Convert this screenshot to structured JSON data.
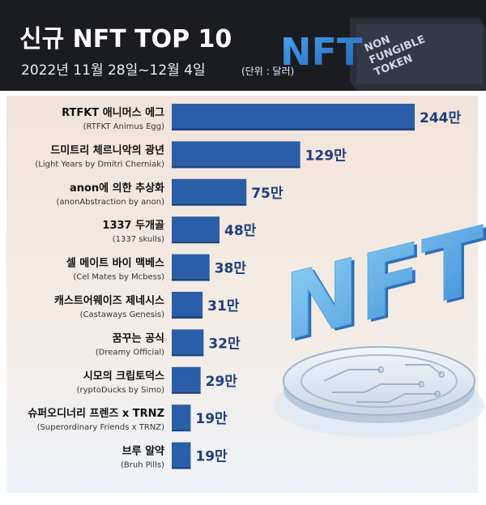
{
  "header": {
    "title": "신규 NFT TOP 10",
    "subtitle": "2022년 11월 28일~12월 4일",
    "unit": "(단위 : 달러)",
    "logo_main": "NFT",
    "logo_lines": [
      "NON",
      "FUNGIBLE",
      "TOKEN"
    ]
  },
  "illustration": {
    "text": "NFT"
  },
  "colors": {
    "bar": "#2b5ea8",
    "bar_dark": "#1d4686",
    "header_bg": "#1b1c22",
    "panel_bg": "#f3e9e1",
    "value_text": "#1f3f7a"
  },
  "chart_data": {
    "type": "bar",
    "orientation": "horizontal",
    "categories": [
      "RTFKT 애니머스 에그",
      "드미트리 체르니악의 광년",
      "anon에 의한 추상화",
      "1337 두개골",
      "셀 메이트 바이 맥베스",
      "캐스트어웨이즈 제네시스",
      "꿈꾸는 공식",
      "시모의 크립토덕스",
      "슈퍼오디너리 프렌즈 x TRNZ",
      "브루 알약"
    ],
    "subcategories": [
      "(RTFKT Animus Egg)",
      "(Light Years by Dmitri Cherniak)",
      "(anonAbstraction by anon)",
      "(1337 skulls)",
      "(Cel Mates by Mcbess)",
      "(Castaways Genesis)",
      "(Dreamy Official)",
      "(ryptoDucks by Simo)",
      "(Superordinary Friends x TRNZ)",
      "(Bruh Pills)"
    ],
    "values": [
      2440000,
      1290000,
      750000,
      480000,
      380000,
      310000,
      320000,
      290000,
      190000,
      190000
    ],
    "value_labels": [
      "244만",
      "129만",
      "75만",
      "48만",
      "38만",
      "31만",
      "32만",
      "29만",
      "19만",
      "19만"
    ],
    "title": "신규 NFT TOP 10",
    "xlabel": "",
    "ylabel": "",
    "xlim": [
      0,
      2440000
    ],
    "grid": false
  }
}
